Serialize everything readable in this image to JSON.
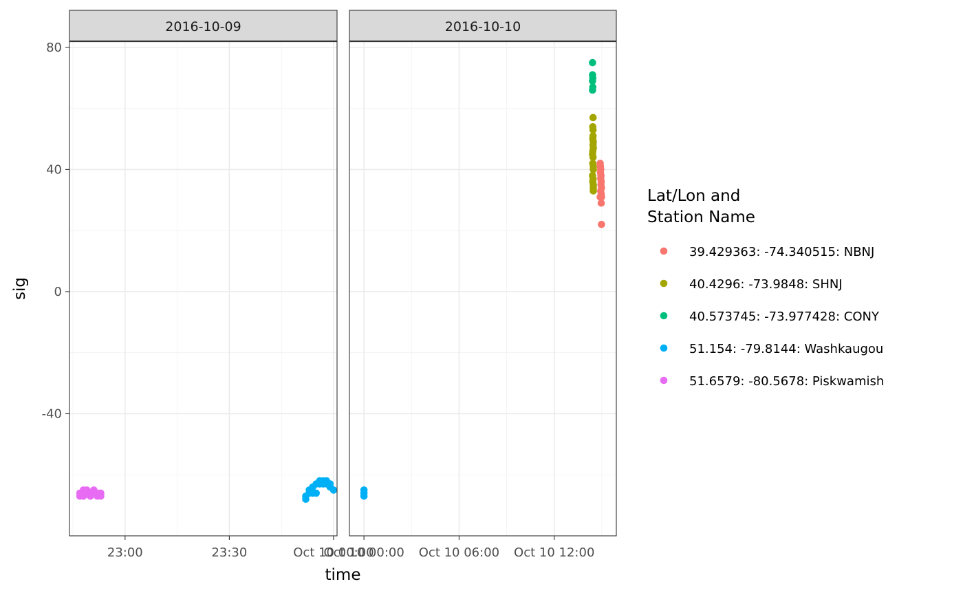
{
  "chart_data": {
    "type": "scatter",
    "xlabel": "time",
    "ylabel": "sig",
    "ylim": [
      -80,
      82
    ],
    "y_ticks": [
      -40,
      0,
      40,
      80
    ],
    "legend": {
      "title_lines": [
        "Lat/Lon and",
        "Station Name"
      ],
      "placement": "right"
    },
    "panels": [
      {
        "strip": "2016-10-09",
        "xlim": [
          "2016-10-09 22:44",
          "2016-10-10 00:01"
        ],
        "x_ticks": [
          {
            "t": "2016-10-09 23:00",
            "label": "23:00"
          },
          {
            "t": "2016-10-09 23:30",
            "label": "23:30"
          },
          {
            "t": "2016-10-10 00:00",
            "label": "Oct 10 00:00"
          }
        ],
        "series": [
          {
            "station": "51.6579: -80.5678: Piskwamish",
            "points": [
              [
                "2016-10-09 22:47",
                -67
              ],
              [
                "2016-10-09 22:47",
                -66
              ],
              [
                "2016-10-09 22:48",
                -65
              ],
              [
                "2016-10-09 22:48",
                -67
              ],
              [
                "2016-10-09 22:49",
                -66
              ],
              [
                "2016-10-09 22:49",
                -65
              ],
              [
                "2016-10-09 22:50",
                -66
              ],
              [
                "2016-10-09 22:50",
                -67
              ],
              [
                "2016-10-09 22:51",
                -65
              ],
              [
                "2016-10-09 22:51",
                -66
              ],
              [
                "2016-10-09 22:52",
                -66
              ],
              [
                "2016-10-09 22:52",
                -67
              ],
              [
                "2016-10-09 22:53",
                -67
              ],
              [
                "2016-10-09 22:53",
                -66
              ]
            ]
          },
          {
            "station": "51.154: -79.8144: Washkaugou",
            "points": [
              [
                "2016-10-09 23:52",
                -68
              ],
              [
                "2016-10-09 23:52",
                -67
              ],
              [
                "2016-10-09 23:53",
                -66
              ],
              [
                "2016-10-09 23:53",
                -65
              ],
              [
                "2016-10-09 23:54",
                -64
              ],
              [
                "2016-10-09 23:54",
                -66
              ],
              [
                "2016-10-09 23:55",
                -63
              ],
              [
                "2016-10-09 23:55",
                -66
              ],
              [
                "2016-10-09 23:56",
                -62
              ],
              [
                "2016-10-09 23:56",
                -63
              ],
              [
                "2016-10-09 23:57",
                -62
              ],
              [
                "2016-10-09 23:57",
                -63
              ],
              [
                "2016-10-09 23:58",
                -62
              ],
              [
                "2016-10-09 23:58",
                -63
              ],
              [
                "2016-10-09 23:59",
                -63
              ],
              [
                "2016-10-09 23:59",
                -64
              ],
              [
                "2016-10-10 00:00",
                -65
              ]
            ]
          }
        ]
      },
      {
        "strip": "2016-10-10",
        "xlim": [
          "2016-10-09 23:05",
          "2016-10-10 15:55"
        ],
        "x_ticks": [
          {
            "t": "2016-10-10 00:00",
            "label": "Oct 10 00:00"
          },
          {
            "t": "2016-10-10 06:00",
            "label": "Oct 10 06:00"
          },
          {
            "t": "2016-10-10 12:00",
            "label": "Oct 10 12:00"
          }
        ],
        "series": [
          {
            "station": "51.154: -79.8144: Washkaugou",
            "points": [
              [
                "2016-10-10 00:00",
                -65
              ],
              [
                "2016-10-10 00:00",
                -66
              ],
              [
                "2016-10-10 00:00",
                -67
              ]
            ]
          },
          {
            "station": "40.573745: -73.977428: CONY",
            "points": [
              [
                "2016-10-10 14:25",
                75
              ],
              [
                "2016-10-10 14:25",
                71
              ],
              [
                "2016-10-10 14:26",
                70
              ],
              [
                "2016-10-10 14:25",
                69
              ],
              [
                "2016-10-10 14:26",
                67
              ],
              [
                "2016-10-10 14:25",
                66
              ]
            ]
          },
          {
            "station": "40.4296: -73.9848: SHNJ",
            "points": [
              [
                "2016-10-10 14:27",
                57
              ],
              [
                "2016-10-10 14:26",
                54
              ],
              [
                "2016-10-10 14:27",
                53
              ],
              [
                "2016-10-10 14:27",
                51
              ],
              [
                "2016-10-10 14:26",
                50
              ],
              [
                "2016-10-10 14:28",
                49
              ],
              [
                "2016-10-10 14:27",
                48
              ],
              [
                "2016-10-10 14:28",
                47
              ],
              [
                "2016-10-10 14:26",
                46
              ],
              [
                "2016-10-10 14:25",
                45
              ],
              [
                "2016-10-10 14:27",
                44
              ],
              [
                "2016-10-10 14:26",
                42
              ],
              [
                "2016-10-10 14:28",
                41
              ],
              [
                "2016-10-10 14:28",
                40
              ],
              [
                "2016-10-10 14:25",
                38
              ],
              [
                "2016-10-10 14:27",
                37
              ],
              [
                "2016-10-10 14:26",
                36
              ],
              [
                "2016-10-10 14:28",
                35
              ],
              [
                "2016-10-10 14:28",
                34
              ],
              [
                "2016-10-10 14:28",
                33
              ]
            ]
          },
          {
            "station": "39.429363: -74.340515: NBNJ",
            "points": [
              [
                "2016-10-10 14:54",
                42
              ],
              [
                "2016-10-10 14:55",
                41
              ],
              [
                "2016-10-10 14:56",
                40
              ],
              [
                "2016-10-10 14:55",
                39
              ],
              [
                "2016-10-10 14:57",
                38
              ],
              [
                "2016-10-10 14:56",
                37
              ],
              [
                "2016-10-10 14:58",
                36
              ],
              [
                "2016-10-10 14:57",
                35
              ],
              [
                "2016-10-10 14:59",
                34
              ],
              [
                "2016-10-10 14:56",
                33
              ],
              [
                "2016-10-10 14:58",
                32
              ],
              [
                "2016-10-10 14:54",
                31
              ],
              [
                "2016-10-10 14:59",
                31
              ],
              [
                "2016-10-10 14:58",
                29
              ],
              [
                "2016-10-10 14:59",
                22
              ]
            ]
          }
        ]
      }
    ],
    "stations": [
      {
        "name": "39.429363: -74.340515: NBNJ",
        "color": "#F8766D"
      },
      {
        "name": "40.4296: -73.9848: SHNJ",
        "color": "#A3A500"
      },
      {
        "name": "40.573745: -73.977428: CONY",
        "color": "#00BF7D"
      },
      {
        "name": "51.154: -79.8144: Washkaugou",
        "color": "#00B0F6"
      },
      {
        "name": "51.6579: -80.5678: Piskwamish",
        "color": "#E76BF3"
      }
    ]
  }
}
